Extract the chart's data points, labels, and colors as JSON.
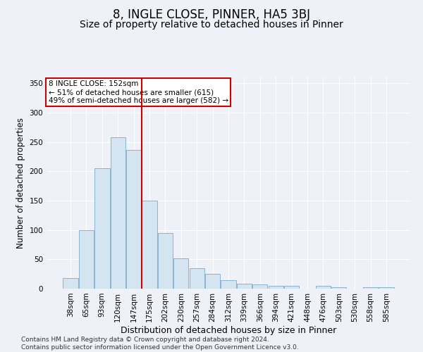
{
  "title": "8, INGLE CLOSE, PINNER, HA5 3BJ",
  "subtitle": "Size of property relative to detached houses in Pinner",
  "xlabel": "Distribution of detached houses by size in Pinner",
  "ylabel": "Number of detached properties",
  "bar_labels": [
    "38sqm",
    "65sqm",
    "93sqm",
    "120sqm",
    "147sqm",
    "175sqm",
    "202sqm",
    "230sqm",
    "257sqm",
    "284sqm",
    "312sqm",
    "339sqm",
    "366sqm",
    "394sqm",
    "421sqm",
    "448sqm",
    "476sqm",
    "503sqm",
    "530sqm",
    "558sqm",
    "585sqm"
  ],
  "bar_values": [
    18,
    100,
    205,
    258,
    237,
    150,
    95,
    52,
    35,
    25,
    14,
    9,
    7,
    5,
    5,
    0,
    5,
    2,
    0,
    2,
    2
  ],
  "bar_color": "#d4e4f0",
  "bar_edge_color": "#7aaac8",
  "vline_x_pos": 4.5,
  "vline_color": "#cc0000",
  "annotation_text": "8 INGLE CLOSE: 152sqm\n← 51% of detached houses are smaller (615)\n49% of semi-detached houses are larger (582) →",
  "annotation_box_facecolor": "#ffffff",
  "annotation_box_edgecolor": "#cc0000",
  "ylim": [
    0,
    360
  ],
  "yticks": [
    0,
    50,
    100,
    150,
    200,
    250,
    300,
    350
  ],
  "fig_background": "#eef2f8",
  "axes_background": "#eef2f8",
  "grid_color": "#ffffff",
  "footer": "Contains HM Land Registry data © Crown copyright and database right 2024.\nContains public sector information licensed under the Open Government Licence v3.0.",
  "title_fontsize": 12,
  "subtitle_fontsize": 10,
  "xlabel_fontsize": 9,
  "ylabel_fontsize": 8.5,
  "tick_fontsize": 7.5,
  "footer_fontsize": 6.5,
  "annotation_fontsize": 7.5
}
